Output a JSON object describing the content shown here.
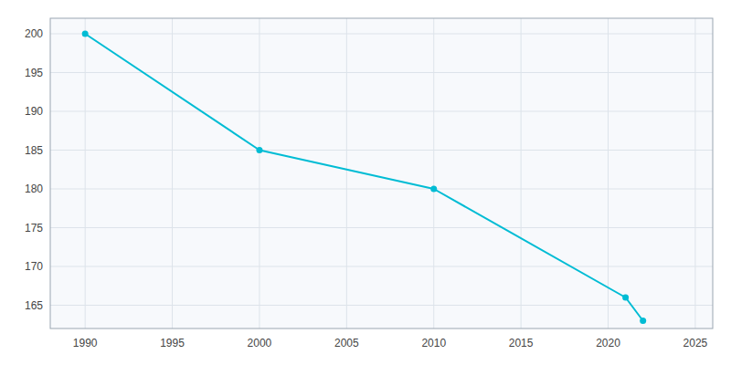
{
  "chart_data": {
    "type": "line",
    "x": [
      1990,
      2000,
      2010,
      2021,
      2022
    ],
    "values": [
      200,
      185,
      180,
      166,
      163
    ],
    "color": "#00bcd4",
    "marker": "circle",
    "line_style": "solid",
    "xlim": [
      1988,
      2026
    ],
    "ylim": [
      162,
      202
    ],
    "xticks": [
      1990,
      1995,
      2000,
      2005,
      2010,
      2015,
      2020,
      2025
    ],
    "yticks": [
      165,
      170,
      175,
      180,
      185,
      190,
      195,
      200
    ],
    "grid": true
  }
}
